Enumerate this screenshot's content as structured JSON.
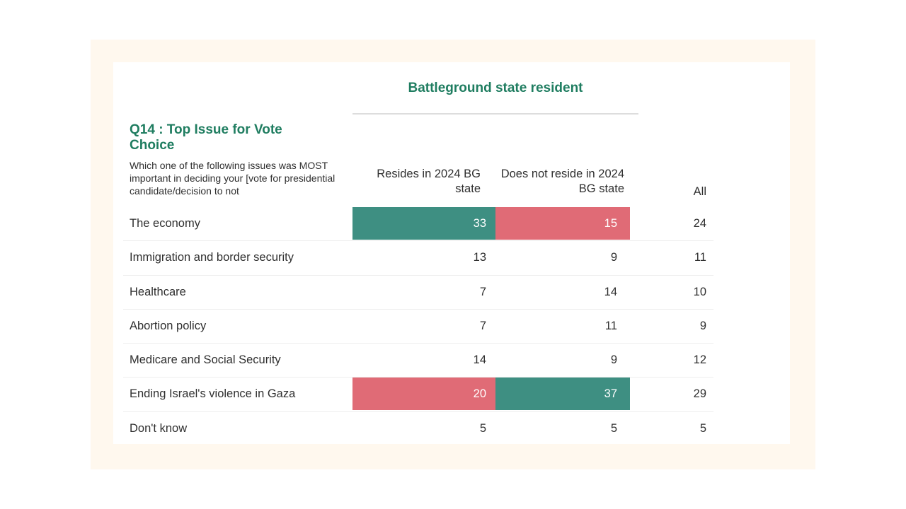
{
  "chart_data": {
    "type": "table",
    "group_header": "Battleground state resident",
    "question_title": "Q14 : Top Issue for Vote Choice",
    "question_text": "Which one of the following issues was MOST important in deciding your [vote for presidential candidate/decision to not",
    "columns": [
      "Resides in 2024 BG state",
      "Does not reside in 2024 BG state",
      "All"
    ],
    "rows": [
      {
        "label": "The economy",
        "values": [
          33,
          15,
          24
        ],
        "highlight": [
          "teal",
          "red",
          ""
        ]
      },
      {
        "label": "Immigration and border security",
        "values": [
          13,
          9,
          11
        ],
        "highlight": [
          "",
          "",
          ""
        ]
      },
      {
        "label": "Healthcare",
        "values": [
          7,
          14,
          10
        ],
        "highlight": [
          "",
          "",
          ""
        ]
      },
      {
        "label": "Abortion policy",
        "values": [
          7,
          11,
          9
        ],
        "highlight": [
          "",
          "",
          ""
        ]
      },
      {
        "label": "Medicare and Social Security",
        "values": [
          14,
          9,
          12
        ],
        "highlight": [
          "",
          "",
          ""
        ]
      },
      {
        "label": "Ending Israel's violence in Gaza",
        "values": [
          20,
          37,
          29
        ],
        "highlight": [
          "red",
          "teal",
          ""
        ]
      },
      {
        "label": "Don't know",
        "values": [
          5,
          5,
          5
        ],
        "highlight": [
          "",
          "",
          ""
        ]
      }
    ]
  },
  "colors": {
    "accent_green": "#1f7d60",
    "highlight_teal": "#3e8f82",
    "highlight_red": "#e06b76",
    "frame_bg": "#fff8ee"
  }
}
